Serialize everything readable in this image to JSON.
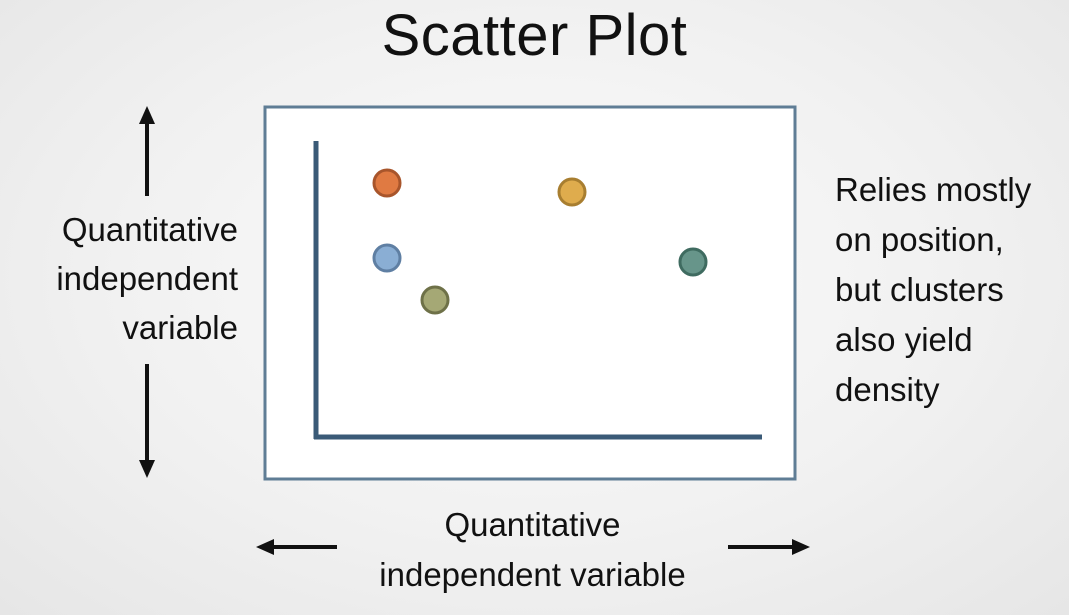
{
  "title": "Scatter Plot",
  "y_label_lines": [
    "Quantitative",
    "independent",
    "variable"
  ],
  "x_label_lines": [
    "Quantitative",
    "independent variable"
  ],
  "note_lines": [
    "Relies mostly",
    "on position,",
    "but clusters",
    "also yield",
    "density"
  ],
  "colors": {
    "frame_border": "#5f7d95",
    "axis": "#3a5a77",
    "arrow": "#111111"
  },
  "points": [
    {
      "name": "point-orange",
      "fill": "#e07a42",
      "stroke": "#a8552b"
    },
    {
      "name": "point-gold",
      "fill": "#dfac4d",
      "stroke": "#a87e30"
    },
    {
      "name": "point-blue",
      "fill": "#8aaed4",
      "stroke": "#5f7fa3"
    },
    {
      "name": "point-teal",
      "fill": "#67958a",
      "stroke": "#3f6b60"
    },
    {
      "name": "point-olive",
      "fill": "#a5a875",
      "stroke": "#6e7148"
    }
  ]
}
